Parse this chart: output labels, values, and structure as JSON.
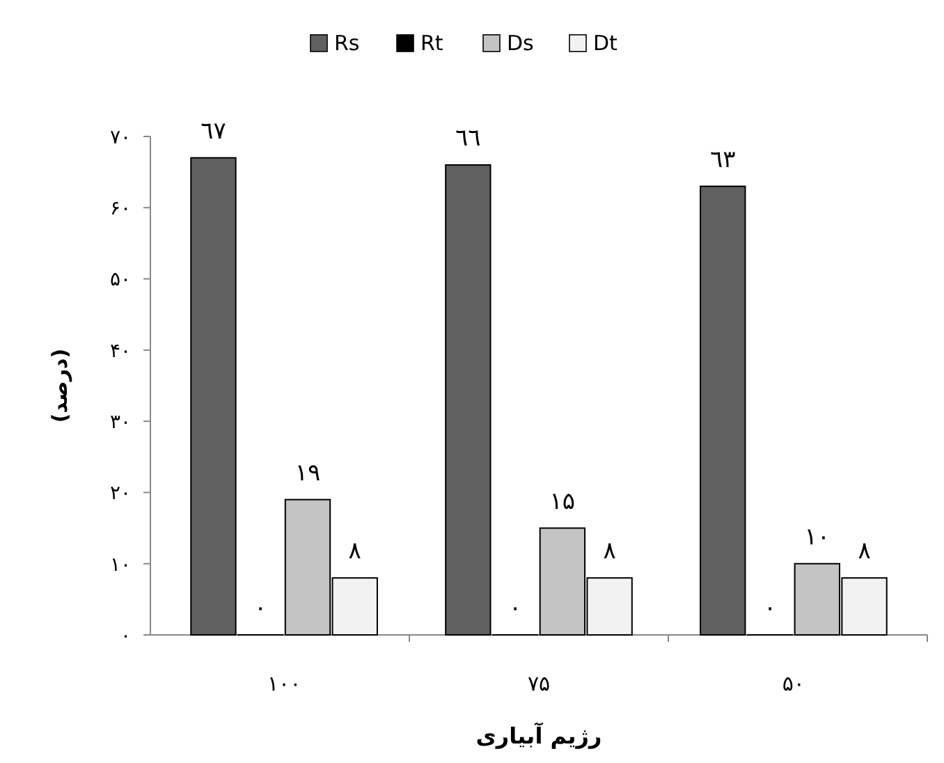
{
  "chart_data": {
    "type": "bar",
    "xlabel": "رژیم آبیاری",
    "ylabel": "(درصد)",
    "categories": [
      "۱۰۰",
      "۷۵",
      "۵۰"
    ],
    "series": [
      {
        "name": "Rs",
        "color": "#606060",
        "values": [
          67,
          66,
          63
        ],
        "value_labels": [
          "٦٧",
          "٦٦",
          "٦۳"
        ]
      },
      {
        "name": "Rt",
        "color": "#000000",
        "values": [
          0,
          0,
          0
        ],
        "value_labels": [
          "۰",
          "۰",
          "۰"
        ]
      },
      {
        "name": "Ds",
        "color": "#c4c4c4",
        "values": [
          19,
          15,
          10
        ],
        "value_labels": [
          "۱۹",
          "۱۵",
          "۱۰"
        ]
      },
      {
        "name": "Dt",
        "color": "#f2f2f2",
        "values": [
          8,
          8,
          8
        ],
        "value_labels": [
          "۸",
          "۸",
          "۸"
        ]
      }
    ],
    "ylim": [
      0,
      70
    ],
    "yticks": [
      {
        "value": 0,
        "label": "۰"
      },
      {
        "value": 10,
        "label": "۱۰"
      },
      {
        "value": 20,
        "label": "۲۰"
      },
      {
        "value": 30,
        "label": "۳۰"
      },
      {
        "value": 40,
        "label": "۴۰"
      },
      {
        "value": 50,
        "label": "۵۰"
      },
      {
        "value": 60,
        "label": "۶۰"
      },
      {
        "value": 70,
        "label": "۷۰"
      }
    ],
    "legend": "top",
    "grid": false
  }
}
